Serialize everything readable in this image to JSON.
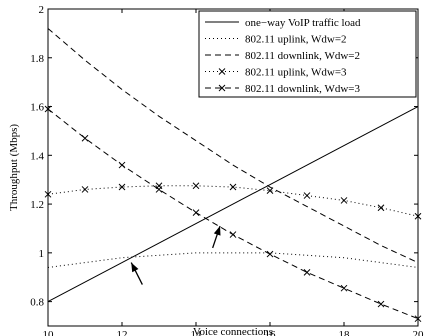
{
  "chart_data": {
    "type": "line",
    "xlabel": "Voice connections",
    "ylabel": "Throughput (Mbps)",
    "xlim": [
      10,
      20
    ],
    "ylim": [
      0.7,
      2.0
    ],
    "xticks": [
      "10",
      "12",
      "14",
      "16",
      "18",
      "20"
    ],
    "yticks": [
      "0.8",
      "1",
      "1.2",
      "1.4",
      "1.6",
      "1.8",
      "2"
    ],
    "legend_position": "top-right",
    "grid": false,
    "series": [
      {
        "name": "one−way VoIP traffic load",
        "style": "solid",
        "marker": "none",
        "x": [
          10,
          20
        ],
        "y": [
          0.8,
          1.6
        ]
      },
      {
        "name": "802.11 uplink, Wdw=2",
        "style": "dotted",
        "marker": "none",
        "x": [
          10,
          11,
          12,
          13,
          14,
          15,
          16,
          17,
          18,
          19,
          20
        ],
        "y": [
          0.94,
          0.96,
          0.98,
          0.99,
          1.0,
          1.0,
          1.0,
          0.99,
          0.98,
          0.96,
          0.94
        ]
      },
      {
        "name": "802.11 downlink, Wdw=2",
        "style": "dashed",
        "marker": "none",
        "x": [
          10,
          11,
          12,
          13,
          14,
          15,
          16,
          17,
          18,
          19,
          20
        ],
        "y": [
          1.92,
          1.79,
          1.67,
          1.56,
          1.46,
          1.36,
          1.27,
          1.19,
          1.11,
          1.03,
          0.96
        ]
      },
      {
        "name": "802.11 uplink, Wdw=3",
        "style": "dotted",
        "marker": "x",
        "x": [
          10,
          11,
          12,
          13,
          14,
          15,
          16,
          17,
          18,
          19,
          20
        ],
        "y": [
          1.24,
          1.26,
          1.27,
          1.275,
          1.275,
          1.27,
          1.255,
          1.235,
          1.215,
          1.185,
          1.15
        ]
      },
      {
        "name": "802.11 downlink, Wdw=3",
        "style": "dashed",
        "marker": "x",
        "x": [
          10,
          11,
          12,
          13,
          14,
          15,
          16,
          17,
          18,
          19,
          20
        ],
        "y": [
          1.59,
          1.47,
          1.36,
          1.26,
          1.165,
          1.075,
          0.995,
          0.92,
          0.855,
          0.79,
          0.73
        ]
      }
    ],
    "annotations": [
      {
        "type": "arrow",
        "from": [
          12.55,
          0.87
        ],
        "to": [
          12.25,
          0.96
        ]
      },
      {
        "type": "arrow",
        "from": [
          14.45,
          1.02
        ],
        "to": [
          14.65,
          1.11
        ]
      }
    ]
  }
}
